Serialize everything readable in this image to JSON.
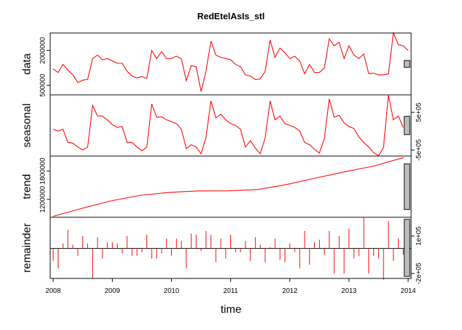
{
  "chart_data": {
    "type": "line",
    "title": "RedEtelAsIs_stl",
    "xlabel": "time",
    "x": {
      "start": 2008.0,
      "step": 0.0833333,
      "ticks": [
        2008,
        2009,
        2010,
        2011,
        2012,
        2013,
        2014
      ],
      "tick_labels": [
        "2008",
        "2009",
        "2010",
        "2011",
        "2012",
        "2013",
        "2014"
      ],
      "lim": [
        2007.95,
        2014.05
      ]
    },
    "line_color": "#ff0000",
    "panels": [
      {
        "key": "data",
        "ylabel": "data",
        "ylim": [
          90000,
          2750000
        ],
        "ticks": [
          500000,
          2000000
        ],
        "tick_labels": [
          "500000",
          "2000000"
        ],
        "axis_side": "left",
        "style": "line",
        "bar_height": 0.12,
        "values": [
          1200000,
          1050000,
          1400000,
          1150000,
          950000,
          620000,
          720000,
          760000,
          1650000,
          1800000,
          1600000,
          1650000,
          1550000,
          1450000,
          1450000,
          1100000,
          900000,
          820000,
          880000,
          800000,
          2000000,
          1650000,
          1950000,
          1650000,
          1650000,
          1750000,
          1650000,
          700000,
          1350000,
          1300000,
          230000,
          1100000,
          2400000,
          1800000,
          1700000,
          1650000,
          1600000,
          1400000,
          1300000,
          950000,
          900000,
          750000,
          780000,
          1100000,
          2450000,
          1700000,
          2100000,
          1900000,
          1650000,
          1750000,
          1550000,
          1000000,
          1400000,
          1050000,
          1050000,
          1250000,
          2500000,
          2200000,
          2350000,
          1650000,
          2200000,
          1800000,
          1650000,
          1850000,
          1000000,
          1020000,
          950000,
          950000,
          990000,
          2750000,
          2250000,
          2200000,
          2000000
        ]
      },
      {
        "key": "seasonal",
        "ylabel": "seasonal",
        "ylim": [
          -660000,
          960000
        ],
        "ticks": [
          -500000,
          500000
        ],
        "tick_labels": [
          "-5e+05",
          "5e+05"
        ],
        "axis_side": "right",
        "style": "line",
        "bar_height": 0.32,
        "values": [
          50000,
          0,
          50000,
          -300000,
          -320000,
          -420000,
          -500000,
          -420000,
          680000,
          400000,
          400000,
          300000,
          170000,
          100000,
          120000,
          -300000,
          -300000,
          -420000,
          -520000,
          -420000,
          720000,
          370000,
          380000,
          300000,
          250000,
          200000,
          50000,
          -460000,
          -360000,
          -420000,
          -600000,
          -170000,
          800000,
          350000,
          450000,
          300000,
          200000,
          150000,
          50000,
          -420000,
          -250000,
          -450000,
          -600000,
          -180000,
          800000,
          300000,
          400000,
          200000,
          150000,
          100000,
          0,
          -300000,
          -360000,
          -480000,
          -580000,
          -200000,
          850000,
          370000,
          420000,
          220000,
          120000,
          70000,
          -150000,
          -300000,
          -420000,
          -570000,
          -650000,
          -430000,
          950000,
          300000,
          400000,
          100000
        ]
      },
      {
        "key": "trend",
        "ylabel": "trend",
        "ylim": [
          820000,
          2120000
        ],
        "ticks": [
          1200000,
          1800000
        ],
        "tick_labels": [
          "1200000",
          "1800000"
        ],
        "axis_side": "left",
        "style": "line",
        "bar_height": 0.8,
        "values": [
          840000,
          1012000,
          1171000,
          1288000,
          1349000,
          1380000,
          1381000,
          1409000,
          1516000,
          1654000,
          1787000,
          1910000,
          2086000
        ]
      },
      {
        "key": "remainder",
        "ylabel": "remainder",
        "ylim": [
          -240000,
          250000
        ],
        "ticks": [
          -200000,
          100000
        ],
        "tick_labels": [
          "-2e+05",
          "1e+05"
        ],
        "axis_side": "right",
        "style": "bars",
        "bar_height": 1.0,
        "values": [
          -100000,
          -160000,
          40000,
          150000,
          30000,
          -60000,
          100000,
          40000,
          -240000,
          90000,
          -80000,
          50000,
          50000,
          40000,
          -40000,
          100000,
          -60000,
          -60000,
          -30000,
          110000,
          -80000,
          -80000,
          -40000,
          80000,
          -60000,
          80000,
          60000,
          -160000,
          120000,
          110000,
          -20000,
          140000,
          110000,
          -110000,
          80000,
          -80000,
          110000,
          -30000,
          -30000,
          60000,
          -100000,
          90000,
          30000,
          -110000,
          10000,
          80000,
          -90000,
          -110000,
          40000,
          -30000,
          -160000,
          140000,
          -130000,
          50000,
          70000,
          -50000,
          140000,
          -200000,
          100000,
          -200000,
          160000,
          -80000,
          -60000,
          250000,
          -200000,
          -60000,
          -80000,
          -250000,
          220000,
          -100000,
          80000,
          -50000,
          80000
        ]
      }
    ]
  }
}
